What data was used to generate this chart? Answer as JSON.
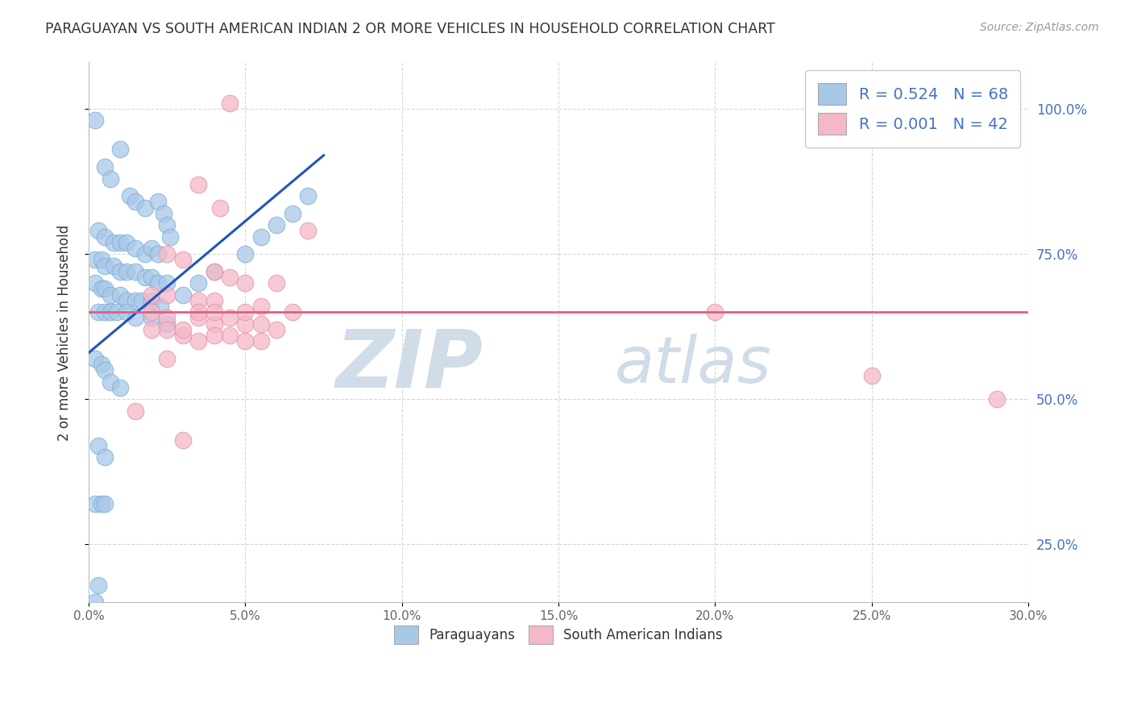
{
  "title": "PARAGUAYAN VS SOUTH AMERICAN INDIAN 2 OR MORE VEHICLES IN HOUSEHOLD CORRELATION CHART",
  "source": "Source: ZipAtlas.com",
  "ylabel": "2 or more Vehicles in Household",
  "x_tick_labels": [
    "0.0%",
    "5.0%",
    "10.0%",
    "15.0%",
    "20.0%",
    "25.0%",
    "30.0%"
  ],
  "x_tick_values": [
    0.0,
    5.0,
    10.0,
    15.0,
    20.0,
    25.0,
    30.0
  ],
  "y_tick_labels": [
    "100.0%",
    "75.0%",
    "50.0%",
    "25.0%"
  ],
  "y_tick_values": [
    100.0,
    75.0,
    50.0,
    25.0
  ],
  "xlim": [
    0.0,
    30.0
  ],
  "ylim": [
    15.0,
    108.0
  ],
  "legend_label1": "R = 0.524   N = 68",
  "legend_label2": "R = 0.001   N = 42",
  "legend_label_bottom1": "Paraguayans",
  "legend_label_bottom2": "South American Indians",
  "blue_color": "#a8c8e8",
  "blue_edge_color": "#7aaed6",
  "pink_color": "#f4b8c8",
  "pink_edge_color": "#e890a8",
  "blue_line_color": "#2255bb",
  "pink_line_color": "#dd6080",
  "blue_points": [
    [
      0.2,
      98.0
    ],
    [
      0.5,
      90.0
    ],
    [
      0.7,
      88.0
    ],
    [
      1.0,
      93.0
    ],
    [
      1.3,
      85.0
    ],
    [
      1.5,
      84.0
    ],
    [
      1.8,
      83.0
    ],
    [
      2.2,
      84.0
    ],
    [
      2.4,
      82.0
    ],
    [
      2.5,
      80.0
    ],
    [
      2.6,
      78.0
    ],
    [
      0.3,
      79.0
    ],
    [
      0.5,
      78.0
    ],
    [
      0.8,
      77.0
    ],
    [
      1.0,
      77.0
    ],
    [
      1.2,
      77.0
    ],
    [
      1.5,
      76.0
    ],
    [
      1.8,
      75.0
    ],
    [
      2.0,
      76.0
    ],
    [
      2.2,
      75.0
    ],
    [
      0.2,
      74.0
    ],
    [
      0.4,
      74.0
    ],
    [
      0.5,
      73.0
    ],
    [
      0.8,
      73.0
    ],
    [
      1.0,
      72.0
    ],
    [
      1.2,
      72.0
    ],
    [
      1.5,
      72.0
    ],
    [
      1.8,
      71.0
    ],
    [
      2.0,
      71.0
    ],
    [
      2.2,
      70.0
    ],
    [
      2.5,
      70.0
    ],
    [
      0.2,
      70.0
    ],
    [
      0.4,
      69.0
    ],
    [
      0.5,
      69.0
    ],
    [
      0.7,
      68.0
    ],
    [
      1.0,
      68.0
    ],
    [
      1.2,
      67.0
    ],
    [
      1.5,
      67.0
    ],
    [
      1.7,
      67.0
    ],
    [
      2.0,
      67.0
    ],
    [
      2.3,
      66.0
    ],
    [
      0.3,
      65.0
    ],
    [
      0.5,
      65.0
    ],
    [
      0.7,
      65.0
    ],
    [
      0.9,
      65.0
    ],
    [
      1.2,
      65.0
    ],
    [
      1.5,
      64.0
    ],
    [
      2.0,
      64.0
    ],
    [
      2.5,
      63.0
    ],
    [
      3.0,
      68.0
    ],
    [
      3.5,
      70.0
    ],
    [
      4.0,
      72.0
    ],
    [
      5.0,
      75.0
    ],
    [
      5.5,
      78.0
    ],
    [
      6.0,
      80.0
    ],
    [
      6.5,
      82.0
    ],
    [
      7.0,
      85.0
    ],
    [
      0.2,
      57.0
    ],
    [
      0.4,
      56.0
    ],
    [
      0.5,
      55.0
    ],
    [
      0.7,
      53.0
    ],
    [
      1.0,
      52.0
    ],
    [
      0.3,
      42.0
    ],
    [
      0.5,
      40.0
    ],
    [
      0.2,
      32.0
    ],
    [
      0.4,
      32.0
    ],
    [
      0.5,
      32.0
    ],
    [
      0.3,
      18.0
    ],
    [
      0.2,
      15.0
    ]
  ],
  "pink_points": [
    [
      4.5,
      101.0
    ],
    [
      3.5,
      87.0
    ],
    [
      4.2,
      83.0
    ],
    [
      7.0,
      79.0
    ],
    [
      2.5,
      75.0
    ],
    [
      3.0,
      74.0
    ],
    [
      4.0,
      72.0
    ],
    [
      4.5,
      71.0
    ],
    [
      5.0,
      70.0
    ],
    [
      2.0,
      68.0
    ],
    [
      2.5,
      68.0
    ],
    [
      3.5,
      67.0
    ],
    [
      4.0,
      67.0
    ],
    [
      5.5,
      66.0
    ],
    [
      6.5,
      65.0
    ],
    [
      2.0,
      65.0
    ],
    [
      2.5,
      64.0
    ],
    [
      3.5,
      64.0
    ],
    [
      4.0,
      63.0
    ],
    [
      5.0,
      63.0
    ],
    [
      6.0,
      62.0
    ],
    [
      2.5,
      62.0
    ],
    [
      3.0,
      61.0
    ],
    [
      4.5,
      61.0
    ],
    [
      5.5,
      60.0
    ],
    [
      3.5,
      65.0
    ],
    [
      4.5,
      64.0
    ],
    [
      5.5,
      63.0
    ],
    [
      3.0,
      62.0
    ],
    [
      4.0,
      61.0
    ],
    [
      1.5,
      48.0
    ],
    [
      3.0,
      43.0
    ],
    [
      20.0,
      65.0
    ],
    [
      25.0,
      54.0
    ],
    [
      29.0,
      50.0
    ],
    [
      2.5,
      57.0
    ],
    [
      5.0,
      65.0
    ],
    [
      6.0,
      70.0
    ],
    [
      5.0,
      60.0
    ],
    [
      4.0,
      65.0
    ],
    [
      3.5,
      60.0
    ],
    [
      2.0,
      62.0
    ]
  ],
  "watermark_zip": "ZIP",
  "watermark_atlas": "atlas",
  "watermark_color": "#d0dce8",
  "background_color": "#ffffff",
  "grid_color": "#cccccc",
  "title_color": "#333333",
  "right_tick_color": "#4472c4",
  "source_color": "#999999"
}
